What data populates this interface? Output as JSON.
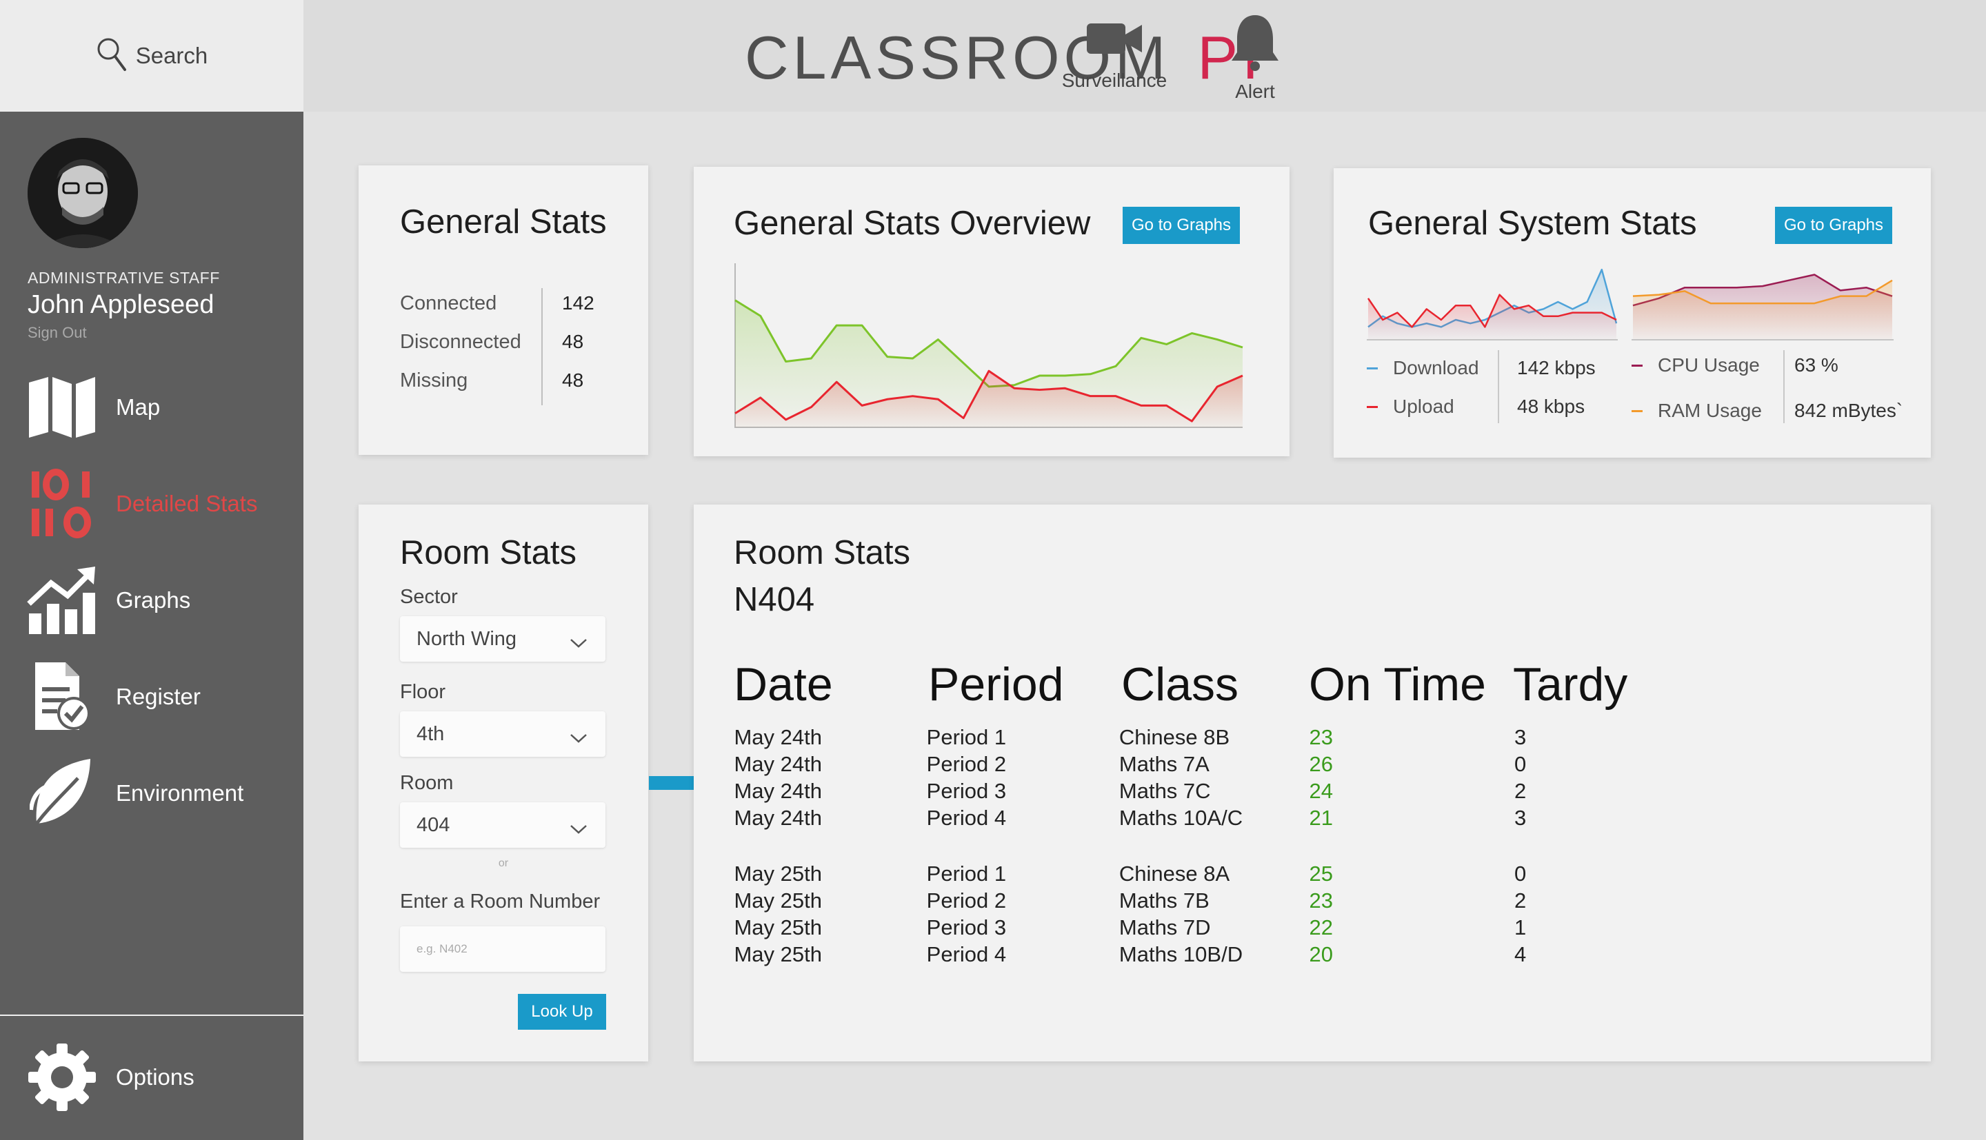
{
  "search": {
    "label": "Search"
  },
  "profile": {
    "role": "ADMINISTRATIVE STAFF",
    "name": "John Appleseed",
    "signout": "Sign Out"
  },
  "nav": [
    {
      "label": "Map",
      "icon": "map-icon"
    },
    {
      "label": "Detailed Stats",
      "icon": "binary-stats-icon",
      "active": true
    },
    {
      "label": "Graphs",
      "icon": "graph-icon"
    },
    {
      "label": "Register",
      "icon": "register-icon"
    },
    {
      "label": "Environment",
      "icon": "leaf-icon"
    }
  ],
  "options": {
    "label": "Options",
    "icon": "gear-icon"
  },
  "header": {
    "logo_main": "CLASSROOM",
    "logo_accent": "PI",
    "surveillance": "Surveillance",
    "alert": "Alert"
  },
  "colors": {
    "accent": "#d1264e",
    "button": "#1a9ac9",
    "active_nav": "#e04747",
    "on_time": "#3a9b1c",
    "series_green": "#7dc42a",
    "series_red": "#e8252f",
    "series_blue": "#4fa3d9",
    "series_purple": "#9b1c52",
    "series_orange": "#f39a2b"
  },
  "general_stats": {
    "title": "General Stats",
    "rows": [
      {
        "label": "Connected",
        "value": "142"
      },
      {
        "label": "Disconnected",
        "value": "48"
      },
      {
        "label": "Missing",
        "value": "48"
      }
    ]
  },
  "overview": {
    "title": "General Stats Overview",
    "button": "Go to Graphs"
  },
  "system_stats": {
    "title": "General System Stats",
    "button": "Go to Graphs",
    "network": [
      {
        "label": "Download",
        "value": "142 kbps"
      },
      {
        "label": "Upload",
        "value": "48 kbps"
      }
    ],
    "system": [
      {
        "label": "CPU Usage",
        "value": "63 %"
      },
      {
        "label": "RAM Usage",
        "value": "842 mBytes`"
      }
    ]
  },
  "room_selector": {
    "title": "Room Stats",
    "sector_label": "Sector",
    "sector_value": "North Wing",
    "floor_label": "Floor",
    "floor_value": "4th",
    "room_label": "Room",
    "room_value": "404",
    "or_text": "or",
    "room_number_label": "Enter a Room Number",
    "room_number_placeholder": "e.g. N402",
    "lookup_button": "Look Up"
  },
  "room_stats": {
    "title": "Room Stats",
    "room": "N404",
    "columns": [
      "Date",
      "Period",
      "Class",
      "On Time",
      "Tardy"
    ],
    "rows": [
      {
        "date": "May 24th",
        "period": "Period 1",
        "class": "Chinese 8B",
        "on_time": "23",
        "tardy": "3"
      },
      {
        "date": "May 24th",
        "period": "Period 2",
        "class": "Maths 7A",
        "on_time": "26",
        "tardy": "0"
      },
      {
        "date": "May 24th",
        "period": "Period 3",
        "class": "Maths 7C",
        "on_time": "24",
        "tardy": "2"
      },
      {
        "date": "May 24th",
        "period": "Period 4",
        "class": "Maths 10A/C",
        "on_time": "21",
        "tardy": "3"
      },
      {
        "date": "May 25th",
        "period": "Period 1",
        "class": "Chinese 8A",
        "on_time": "25",
        "tardy": "0"
      },
      {
        "date": "May 25th",
        "period": "Period 2",
        "class": "Maths 7B",
        "on_time": "23",
        "tardy": "2"
      },
      {
        "date": "May 25th",
        "period": "Period 3",
        "class": "Maths 7D",
        "on_time": "22",
        "tardy": "1"
      },
      {
        "date": "May 25th",
        "period": "Period 4",
        "class": "Maths 10B/D",
        "on_time": "20",
        "tardy": "4"
      }
    ]
  },
  "chart_data": [
    {
      "type": "area",
      "x": [
        0,
        1,
        2,
        3,
        4,
        5,
        6,
        7,
        8,
        9,
        10,
        11,
        12,
        13,
        14,
        15,
        16,
        17,
        18,
        19,
        20
      ],
      "series": [
        {
          "values": [
            80,
            70,
            41,
            43,
            64,
            64,
            44,
            43,
            55,
            40,
            25,
            26,
            32,
            32,
            33,
            38,
            56,
            52,
            59,
            55,
            50
          ],
          "color": "#7dc42a"
        },
        {
          "values": [
            8,
            18,
            4,
            12,
            28,
            13,
            17,
            19,
            17,
            5,
            35,
            24,
            23,
            24,
            19,
            19,
            13,
            13,
            3,
            25,
            32
          ],
          "color": "#e8252f"
        }
      ],
      "ylim": [
        0,
        100
      ]
    },
    {
      "type": "area",
      "x": [
        0,
        1,
        2,
        3,
        4,
        5,
        6,
        7,
        8,
        9,
        10,
        11,
        12,
        13,
        14,
        15,
        16,
        17
      ],
      "series": [
        {
          "values": [
            15,
            30,
            20,
            15,
            20,
            15,
            25,
            20,
            25,
            35,
            45,
            35,
            40,
            50,
            40,
            50,
            95,
            20
          ],
          "color": "#4fa3d9"
        },
        {
          "values": [
            55,
            25,
            35,
            15,
            40,
            25,
            45,
            45,
            15,
            60,
            40,
            45,
            30,
            30,
            35,
            35,
            35,
            25
          ],
          "color": "#e8252f"
        }
      ],
      "ylim": [
        0,
        100
      ]
    },
    {
      "type": "area",
      "x": [
        0,
        1,
        2,
        3,
        4,
        5,
        6,
        7,
        8,
        9,
        10
      ],
      "series": [
        {
          "values": [
            45,
            55,
            70,
            70,
            70,
            72,
            80,
            88,
            66,
            70,
            58
          ],
          "color": "#9b1c52"
        },
        {
          "values": [
            58,
            60,
            65,
            48,
            48,
            48,
            48,
            48,
            58,
            58,
            80
          ],
          "color": "#f39a2b"
        }
      ],
      "ylim": [
        0,
        100
      ]
    }
  ]
}
